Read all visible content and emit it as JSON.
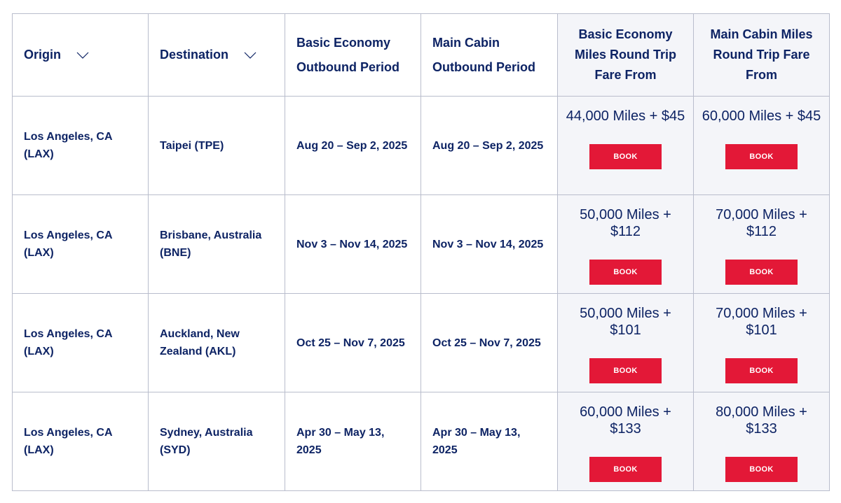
{
  "table": {
    "headers": {
      "origin": "Origin",
      "destination": "Destination",
      "basic_outbound": "Basic Economy Outbound Period",
      "main_outbound": "Main Cabin Outbound Period",
      "basic_fare": "Basic Economy Miles Round Trip Fare From",
      "main_fare": "Main Cabin Miles Round Trip Fare From"
    },
    "book_label": "BOOK",
    "rows": [
      {
        "origin": "Los Angeles, CA (LAX)",
        "destination": "Taipei (TPE)",
        "basic_outbound": "Aug 20 – Sep 2, 2025",
        "main_outbound": "Aug 20 – Sep 2, 2025",
        "basic_fare": "44,000 Miles + $45",
        "main_fare": "60,000 Miles + $45"
      },
      {
        "origin": "Los Angeles, CA (LAX)",
        "destination": "Brisbane, Australia (BNE)",
        "basic_outbound": "Nov 3 – Nov 14, 2025",
        "main_outbound": "Nov 3 – Nov 14, 2025",
        "basic_fare": "50,000 Miles + $112",
        "main_fare": "70,000 Miles + $112"
      },
      {
        "origin": "Los Angeles, CA (LAX)",
        "destination": "Auckland, New Zealand (AKL)",
        "basic_outbound": "Oct 25 – Nov 7, 2025",
        "main_outbound": "Oct 25 – Nov 7, 2025",
        "basic_fare": "50,000 Miles + $101",
        "main_fare": "70,000 Miles + $101"
      },
      {
        "origin": "Los Angeles, CA (LAX)",
        "destination": "Sydney, Australia (SYD)",
        "basic_outbound": "Apr 30 – May 13, 2025",
        "main_outbound": "Apr 30 – May 13, 2025",
        "basic_fare": "60,000 Miles + $133",
        "main_fare": "80,000 Miles + $133"
      }
    ]
  },
  "colors": {
    "text": "#0d2364",
    "book_button": "#e31837",
    "shaded_column": "#f4f5f9",
    "border": "#b9bdcc"
  },
  "icons": {
    "sort": "chevron-down-icon"
  }
}
